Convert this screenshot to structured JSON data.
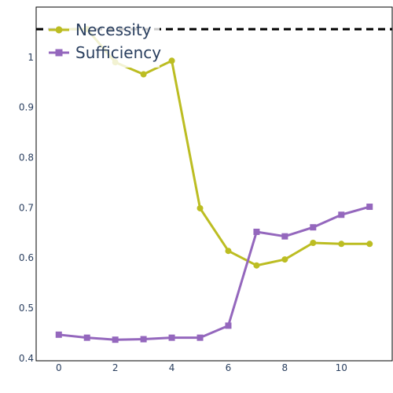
{
  "chart_data": {
    "type": "line",
    "x": [
      0,
      1,
      2,
      3,
      4,
      5,
      6,
      7,
      8,
      9,
      10,
      11
    ],
    "series": [
      {
        "name": "Necessity",
        "color": "#bcbd22",
        "marker": "circle",
        "values": [
          1.056,
          1.056,
          0.99,
          0.966,
          0.993,
          0.699,
          0.614,
          0.585,
          0.597,
          0.63,
          0.628,
          0.628
        ]
      },
      {
        "name": "Sufficiency",
        "color": "#9467bd",
        "marker": "square",
        "values": [
          0.447,
          0.441,
          0.437,
          0.438,
          0.441,
          0.441,
          0.465,
          0.652,
          0.643,
          0.661,
          0.686,
          0.702
        ]
      }
    ],
    "reference_line": {
      "y": 1.056,
      "style": "dashed",
      "color": "#000000"
    },
    "xlim": [
      -0.8,
      11.8
    ],
    "ylim": [
      0.395,
      1.1
    ],
    "x_ticks": [
      0,
      2,
      4,
      6,
      8,
      10
    ],
    "y_ticks": [
      0.4,
      0.5,
      0.6,
      0.7,
      0.8,
      0.9,
      1
    ],
    "grid": false,
    "legend_position": "top-left",
    "title": "",
    "xlabel": "",
    "ylabel": ""
  }
}
